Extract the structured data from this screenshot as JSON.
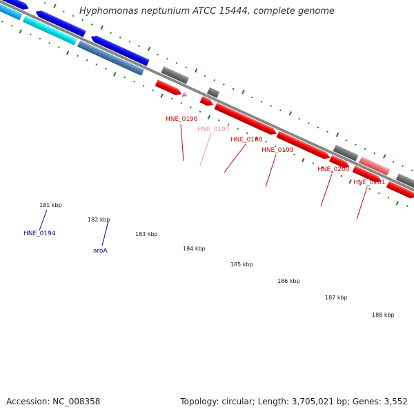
{
  "title": "Hyphomonas neptunium ATCC 15444, complete genome",
  "footer": {
    "accession": "Accession: NC_008358",
    "summary": "Topology: circular; Length: 3,705,021 bp; Genes: 3,552"
  },
  "colors": {
    "backbone": "#888888",
    "tick_dots": "#1a7a1a",
    "label_blue": "#00008b",
    "label_red": "#cc0000",
    "label_pink": "#f08fb0"
  },
  "tick_labels": [
    "181 kbp",
    "182 kbp",
    "183 kbp",
    "184 kbp",
    "185 kbp",
    "186 kbp",
    "187 kbp",
    "188 kbp"
  ],
  "gene_labels": [
    {
      "text": "HNE_0194",
      "color": "#00008b"
    },
    {
      "text": "aroA",
      "color": "#00008b"
    },
    {
      "text": "HNE_0196",
      "color": "#cc0000"
    },
    {
      "text": "HNE_0197",
      "color": "#f08fb0"
    },
    {
      "text": "HNE_0198",
      "color": "#cc0000"
    },
    {
      "text": "HNE_0199",
      "color": "#cc0000"
    },
    {
      "text": "HNE_0200",
      "color": "#cc0000"
    },
    {
      "text": "HNE_0201",
      "color": "#cc0000"
    }
  ]
}
